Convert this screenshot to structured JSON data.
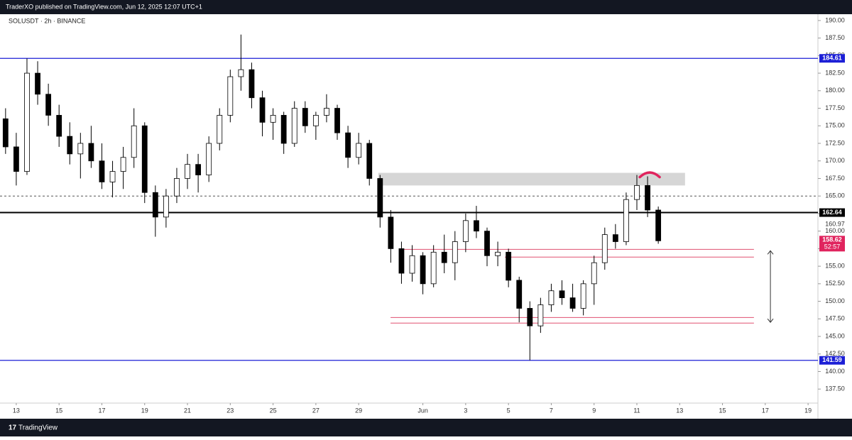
{
  "header": {
    "publisher": "TraderXO published on TradingView.com, Jun 12, 2025 12:07 UTC+1"
  },
  "footer": {
    "brand": "TradingView"
  },
  "chart_data": {
    "type": "candlestick",
    "title": "SOLUSDT · 2h · BINANCE",
    "xlim": [
      -0.76,
      37.46
    ],
    "ylim": [
      135.5,
      190.9
    ],
    "xticks": [
      {
        "value": 0,
        "label": "13"
      },
      {
        "value": 2,
        "label": "15"
      },
      {
        "value": 4,
        "label": "17"
      },
      {
        "value": 6,
        "label": "19"
      },
      {
        "value": 8,
        "label": "21"
      },
      {
        "value": 10,
        "label": "23"
      },
      {
        "value": 12,
        "label": "25"
      },
      {
        "value": 14,
        "label": "27"
      },
      {
        "value": 16,
        "label": "29"
      },
      {
        "value": 19,
        "label": "Jun"
      },
      {
        "value": 21,
        "label": "3"
      },
      {
        "value": 23,
        "label": "5"
      },
      {
        "value": 25,
        "label": "7"
      },
      {
        "value": 27,
        "label": "9"
      },
      {
        "value": 29,
        "label": "11"
      },
      {
        "value": 31,
        "label": "13"
      },
      {
        "value": 33,
        "label": "15"
      },
      {
        "value": 35,
        "label": "17"
      },
      {
        "value": 37,
        "label": "19"
      }
    ],
    "yticks": [
      {
        "value": 137.5,
        "label": "137.50"
      },
      {
        "value": 140,
        "label": "140.00"
      },
      {
        "value": 142.5,
        "label": "142.50"
      },
      {
        "value": 145,
        "label": "145.00"
      },
      {
        "value": 147.5,
        "label": "147.50"
      },
      {
        "value": 150,
        "label": "150.00"
      },
      {
        "value": 152.5,
        "label": "152.50"
      },
      {
        "value": 155,
        "label": "155.00"
      },
      {
        "value": 157.5,
        "label": "157.50"
      },
      {
        "value": 160,
        "label": "160.00"
      },
      {
        "value": 162.5,
        "label": "162.50"
      },
      {
        "value": 165,
        "label": "165.00"
      },
      {
        "value": 167.5,
        "label": "167.50"
      },
      {
        "value": 170,
        "label": "170.00"
      },
      {
        "value": 172.5,
        "label": "172.50"
      },
      {
        "value": 175,
        "label": "175.00"
      },
      {
        "value": 177.5,
        "label": "177.50"
      },
      {
        "value": 180,
        "label": "180.00"
      },
      {
        "value": 182.5,
        "label": "182.50"
      },
      {
        "value": 185,
        "label": "185.00"
      },
      {
        "value": 187.5,
        "label": "187.50"
      },
      {
        "value": 190,
        "label": "190.00"
      }
    ],
    "up_color": "#ffffff",
    "down_color": "#000000",
    "x": [
      -0.5,
      0,
      0.5,
      1,
      1.5,
      2,
      2.5,
      3,
      3.5,
      4,
      4.5,
      5,
      5.5,
      6,
      6.5,
      7,
      7.5,
      8,
      8.5,
      9,
      9.5,
      10,
      10.5,
      11,
      11.5,
      12,
      12.5,
      13,
      13.5,
      14,
      14.5,
      15,
      15.5,
      16,
      16.5,
      17,
      17.5,
      18,
      18.5,
      19,
      19.5,
      20,
      20.5,
      21,
      21.5,
      22,
      22.5,
      23,
      23.5,
      24,
      24.5,
      25,
      25.5,
      26,
      26.5,
      27,
      27.5,
      28,
      28.5,
      29,
      29.5,
      30
    ],
    "open": [
      176,
      172,
      168.5,
      182.5,
      179.5,
      176.5,
      173.5,
      171,
      172.5,
      170,
      167,
      168.5,
      170.5,
      175,
      165.5,
      162,
      165,
      167.5,
      169.5,
      168,
      172.5,
      176.5,
      182,
      183,
      179,
      175.5,
      176.5,
      172.5,
      177.5,
      175,
      176.5,
      177.5,
      174,
      170.5,
      172.5,
      167.5,
      162,
      157.5,
      154,
      156.5,
      152.5,
      157,
      155.5,
      158.5,
      161.5,
      160,
      156.5,
      157,
      153,
      149,
      146.5,
      149.5,
      151.5,
      150.5,
      149,
      152.5,
      155.5,
      159.5,
      158.5,
      164.5,
      166.5,
      163
    ],
    "high": [
      177.5,
      174,
      184.6,
      184.2,
      181,
      178,
      175.5,
      174,
      175,
      172.5,
      170,
      172,
      177.5,
      175.5,
      166.5,
      166,
      169,
      171,
      171,
      173.5,
      177.5,
      183,
      188,
      184,
      180,
      177.5,
      177,
      178.5,
      178.5,
      177,
      179.5,
      178,
      175,
      174,
      173,
      168,
      163,
      158.5,
      158,
      157,
      158,
      159.5,
      160,
      162.5,
      163.6,
      160.5,
      158.5,
      157.5,
      153.5,
      150,
      150.5,
      152.5,
      153,
      152.5,
      153,
      156.5,
      160.5,
      161,
      165.5,
      168,
      167.8,
      163.5
    ],
    "low": [
      171,
      166.5,
      168,
      178,
      175,
      172,
      169.5,
      167.5,
      169,
      166,
      164.8,
      166,
      169,
      164,
      159.2,
      160.5,
      164,
      166,
      165.5,
      167,
      171.5,
      175.5,
      180,
      177.5,
      173.5,
      173,
      171,
      172,
      174,
      173,
      175.5,
      173,
      169,
      169.5,
      166.5,
      160.5,
      155.5,
      152.5,
      152.8,
      151,
      152,
      154,
      153,
      157,
      159,
      155,
      155,
      152,
      147,
      141.6,
      145.5,
      148.5,
      149.5,
      148.5,
      148,
      149.5,
      154.5,
      157.5,
      158,
      163,
      162,
      158.2
    ],
    "close": [
      172,
      168.5,
      182.5,
      179.5,
      176.5,
      173.5,
      171,
      172.5,
      170,
      167,
      168.5,
      170.5,
      175,
      165.5,
      162,
      165,
      167.5,
      169.5,
      168,
      172.5,
      176.5,
      182,
      183,
      179,
      175.5,
      176.5,
      172.5,
      177.5,
      175,
      176.5,
      177.5,
      174,
      170.5,
      172.5,
      167.5,
      162,
      157.5,
      154,
      156.5,
      152.5,
      157,
      155.5,
      158.5,
      161.5,
      160,
      156.5,
      157,
      153,
      149,
      146.5,
      149.5,
      151.5,
      150.5,
      149,
      152.5,
      155.5,
      159.5,
      158.5,
      164.5,
      166.5,
      163,
      158.62
    ],
    "levels": [
      {
        "value": 184.61,
        "color": "#1c1fd6"
      },
      {
        "value": 162.64,
        "color": "#000000"
      },
      {
        "value": 141.59,
        "color": "#1c1fd6"
      }
    ],
    "dashed_level": 165,
    "axis_marker": 160.97,
    "last_price": {
      "value": 158.62,
      "countdown": "52:57",
      "color": "#e0245e"
    },
    "zones": [
      {
        "low": 166.5,
        "high": 168.3,
        "from": 16.92,
        "to": 31.25,
        "color": "#d6d6d6"
      }
    ],
    "segments": [
      {
        "value": 157.4,
        "from": 17.88,
        "to": 34.47,
        "color": "#e05070"
      },
      {
        "value": 156.3,
        "from": 22.83,
        "to": 34.47,
        "color": "#e05070"
      },
      {
        "value": 147.7,
        "from": 17.49,
        "to": 34.47,
        "color": "#e05070"
      },
      {
        "value": 146.9,
        "from": 17.49,
        "to": 34.47,
        "color": "#e05070"
      }
    ],
    "range_arrow": {
      "x": 35.24,
      "from": 157.2,
      "to": 147
    },
    "arc": {
      "x": 29.6,
      "y": 168.2,
      "color": "#e0245e"
    }
  }
}
